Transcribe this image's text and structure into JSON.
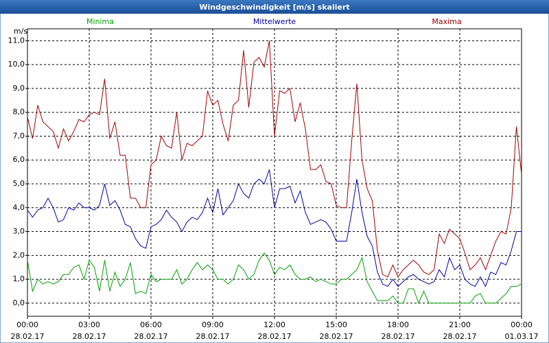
{
  "chart_data": {
    "type": "line",
    "title": "Windgeschwindigkeit [m/s] skaliert",
    "ylabel": "m/s",
    "xlim": [
      0,
      24
    ],
    "ylim": [
      -0.55,
      11.5
    ],
    "grid": true,
    "xticks": [
      {
        "value": 0,
        "label": "00:00"
      },
      {
        "value": 3,
        "label": "03:00"
      },
      {
        "value": 6,
        "label": "06:00"
      },
      {
        "value": 9,
        "label": "09:00"
      },
      {
        "value": 12,
        "label": "12:00"
      },
      {
        "value": 15,
        "label": "15:00"
      },
      {
        "value": 18,
        "label": "18:00"
      },
      {
        "value": 21,
        "label": "21:00"
      },
      {
        "value": 24,
        "label": "00:00"
      }
    ],
    "xtick_dates": [
      "28.02.17",
      "28.02.17",
      "28.02.17",
      "28.02.17",
      "28.02.17",
      "28.02.17",
      "28.02.17",
      "28.02.17",
      "01.03.17"
    ],
    "yticks": [
      {
        "value": 0,
        "label": "0,0"
      },
      {
        "value": 1,
        "label": "1,0"
      },
      {
        "value": 2,
        "label": "2,0"
      },
      {
        "value": 3,
        "label": "3,0"
      },
      {
        "value": 4,
        "label": "4,0"
      },
      {
        "value": 5,
        "label": "5,0"
      },
      {
        "value": 6,
        "label": "6,0"
      },
      {
        "value": 7,
        "label": "7,0"
      },
      {
        "value": 8,
        "label": "8,0"
      },
      {
        "value": 9,
        "label": "9,0"
      },
      {
        "value": 10,
        "label": "10,0"
      },
      {
        "value": 11,
        "label": "11,0"
      }
    ],
    "x": [
      0,
      0.25,
      0.5,
      0.75,
      1,
      1.25,
      1.5,
      1.75,
      2,
      2.25,
      2.5,
      2.75,
      3,
      3.25,
      3.5,
      3.75,
      4,
      4.25,
      4.5,
      4.75,
      5,
      5.25,
      5.5,
      5.75,
      6,
      6.25,
      6.5,
      6.75,
      7,
      7.25,
      7.5,
      7.75,
      8,
      8.25,
      8.5,
      8.75,
      9,
      9.25,
      9.5,
      9.75,
      10,
      10.25,
      10.5,
      10.75,
      11,
      11.25,
      11.5,
      11.75,
      12,
      12.25,
      12.5,
      12.75,
      13,
      13.25,
      13.5,
      13.75,
      14,
      14.25,
      14.5,
      14.75,
      15,
      15.25,
      15.5,
      15.75,
      16,
      16.25,
      16.5,
      16.75,
      17,
      17.25,
      17.5,
      17.75,
      18,
      18.25,
      18.5,
      18.75,
      19,
      19.25,
      19.5,
      19.75,
      20,
      20.25,
      20.5,
      20.75,
      21,
      21.25,
      21.5,
      21.75,
      22,
      22.25,
      22.5,
      22.75,
      23,
      23.25,
      23.5,
      23.75,
      24
    ],
    "series": [
      {
        "name": "Minima",
        "color": "#00a000",
        "values": [
          1.8,
          0.5,
          1.0,
          0.8,
          0.9,
          0.8,
          0.9,
          1.2,
          1.2,
          1.5,
          1.6,
          1.0,
          1.8,
          1.5,
          0.5,
          1.8,
          0.5,
          1.3,
          0.7,
          1.0,
          1.7,
          0.4,
          0.5,
          0.4,
          1.2,
          0.9,
          1.0,
          1.0,
          1.0,
          1.4,
          0.8,
          1.0,
          1.4,
          1.7,
          1.4,
          1.6,
          1.4,
          1.0,
          1.0,
          0.8,
          1.0,
          1.6,
          1.4,
          1.0,
          1.2,
          1.8,
          2.1,
          1.8,
          1.2,
          1.5,
          1.4,
          1.6,
          1.2,
          1.0,
          1.0,
          1.1,
          0.9,
          1.0,
          0.9,
          0.8,
          0.8,
          1.0,
          1.0,
          1.2,
          1.4,
          1.9,
          0.9,
          0.5,
          0.1,
          0.1,
          0.1,
          0.3,
          0.0,
          0.0,
          0.6,
          0.6,
          0.0,
          0.5,
          0.0,
          0.0,
          0.0,
          0.0,
          0.0,
          0.0,
          0.0,
          0.0,
          0.0,
          0.3,
          0.4,
          0.0,
          0.0,
          0.0,
          0.2,
          0.4,
          0.7,
          0.7,
          0.8
        ]
      },
      {
        "name": "Mittelwerte",
        "color": "#0000a0",
        "values": [
          3.9,
          3.6,
          3.9,
          4.0,
          4.4,
          4.0,
          3.4,
          3.5,
          4.0,
          3.9,
          4.2,
          4.0,
          4.0,
          3.9,
          4.1,
          5.0,
          4.1,
          4.3,
          3.9,
          3.3,
          3.2,
          2.7,
          2.4,
          2.3,
          3.2,
          3.3,
          3.5,
          3.9,
          3.6,
          3.4,
          3.0,
          3.4,
          3.6,
          3.5,
          3.8,
          4.4,
          3.8,
          4.8,
          3.7,
          4.0,
          4.3,
          5.0,
          4.6,
          4.4,
          5.0,
          5.2,
          5.0,
          5.6,
          4.0,
          4.8,
          4.8,
          4.9,
          4.2,
          4.7,
          3.8,
          3.3,
          3.4,
          3.5,
          3.4,
          3.1,
          2.6,
          2.6,
          2.6,
          3.8,
          5.2,
          3.8,
          2.8,
          2.4,
          1.3,
          0.8,
          0.7,
          1.0,
          0.7,
          0.9,
          1.1,
          1.2,
          1.0,
          0.9,
          0.8,
          0.9,
          1.4,
          1.1,
          1.9,
          1.4,
          1.6,
          1.0,
          0.8,
          0.7,
          1.1,
          0.7,
          1.3,
          1.2,
          1.7,
          1.6,
          2.2,
          3.0,
          3.0
        ]
      },
      {
        "name": "Maxima",
        "color": "#a00000",
        "values": [
          7.8,
          6.9,
          8.3,
          7.6,
          7.4,
          7.2,
          6.5,
          7.3,
          6.8,
          7.2,
          7.7,
          7.6,
          7.9,
          8.0,
          7.9,
          9.4,
          6.9,
          7.6,
          6.2,
          6.2,
          4.4,
          4.4,
          4.0,
          4.0,
          5.8,
          6.0,
          7.0,
          6.6,
          6.5,
          8.0,
          6.0,
          6.7,
          6.6,
          6.8,
          7.0,
          8.9,
          8.3,
          8.5,
          7.5,
          6.8,
          8.3,
          8.5,
          10.6,
          8.2,
          10.1,
          10.3,
          9.9,
          11.0,
          7.0,
          8.9,
          8.8,
          9.0,
          7.6,
          8.4,
          7.3,
          5.6,
          5.6,
          5.8,
          5.1,
          5.0,
          4.1,
          4.0,
          4.0,
          6.8,
          9.2,
          6.0,
          4.8,
          4.3,
          2.2,
          1.2,
          1.1,
          1.6,
          1.1,
          1.4,
          1.6,
          1.8,
          1.6,
          1.3,
          1.2,
          1.4,
          2.9,
          2.5,
          3.1,
          2.9,
          2.7,
          2.1,
          1.4,
          1.6,
          1.9,
          1.4,
          2.0,
          2.6,
          3.0,
          2.9,
          4.0,
          7.4,
          5.4
        ]
      }
    ]
  }
}
